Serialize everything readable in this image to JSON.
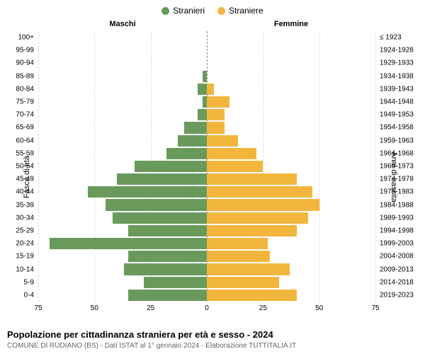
{
  "chart": {
    "type": "population-pyramid",
    "legend": {
      "male": {
        "label": "Stranieri",
        "color": "#6a9a5b"
      },
      "female": {
        "label": "Straniere",
        "color": "#f2b63c"
      }
    },
    "gender_labels": {
      "male": "Maschi",
      "female": "Femmine"
    },
    "yaxis": {
      "left_title": "Fasce di età",
      "right_title": "Anni di nascita"
    },
    "xaxis": {
      "max": 75,
      "ticks": [
        75,
        50,
        25,
        0,
        25,
        50,
        75
      ],
      "tick_positions": [
        0,
        16.667,
        33.333,
        50,
        66.667,
        83.333,
        100
      ]
    },
    "grid_color": "#dddddd",
    "background_color": "#ffffff",
    "label_fontsize": 10,
    "rows": [
      {
        "age": "100+",
        "birth": "≤ 1923",
        "m": 0,
        "f": 0
      },
      {
        "age": "95-99",
        "birth": "1924-1928",
        "m": 0,
        "f": 0
      },
      {
        "age": "90-94",
        "birth": "1929-1933",
        "m": 0,
        "f": 0
      },
      {
        "age": "85-89",
        "birth": "1934-1938",
        "m": 2,
        "f": 0
      },
      {
        "age": "80-84",
        "birth": "1939-1943",
        "m": 4,
        "f": 3
      },
      {
        "age": "75-79",
        "birth": "1944-1948",
        "m": 2,
        "f": 10
      },
      {
        "age": "70-74",
        "birth": "1949-1953",
        "m": 4,
        "f": 8
      },
      {
        "age": "65-69",
        "birth": "1954-1958",
        "m": 10,
        "f": 8
      },
      {
        "age": "60-64",
        "birth": "1959-1963",
        "m": 13,
        "f": 14
      },
      {
        "age": "55-59",
        "birth": "1964-1968",
        "m": 18,
        "f": 22
      },
      {
        "age": "50-54",
        "birth": "1969-1973",
        "m": 32,
        "f": 25
      },
      {
        "age": "45-49",
        "birth": "1974-1978",
        "m": 40,
        "f": 40
      },
      {
        "age": "40-44",
        "birth": "1979-1983",
        "m": 53,
        "f": 47
      },
      {
        "age": "35-39",
        "birth": "1984-1988",
        "m": 45,
        "f": 50
      },
      {
        "age": "30-34",
        "birth": "1989-1993",
        "m": 42,
        "f": 45
      },
      {
        "age": "25-29",
        "birth": "1994-1998",
        "m": 35,
        "f": 40
      },
      {
        "age": "20-24",
        "birth": "1999-2003",
        "m": 70,
        "f": 27
      },
      {
        "age": "15-19",
        "birth": "2004-2008",
        "m": 35,
        "f": 28
      },
      {
        "age": "10-14",
        "birth": "2009-2013",
        "m": 37,
        "f": 37
      },
      {
        "age": "5-9",
        "birth": "2014-2018",
        "m": 28,
        "f": 32
      },
      {
        "age": "0-4",
        "birth": "2019-2023",
        "m": 35,
        "f": 40
      }
    ]
  },
  "footer": {
    "title": "Popolazione per cittadinanza straniera per età e sesso - 2024",
    "subtitle": "COMUNE DI RUDIANO (BS) - Dati ISTAT al 1° gennaio 2024 - Elaborazione TUTTITALIA.IT"
  }
}
